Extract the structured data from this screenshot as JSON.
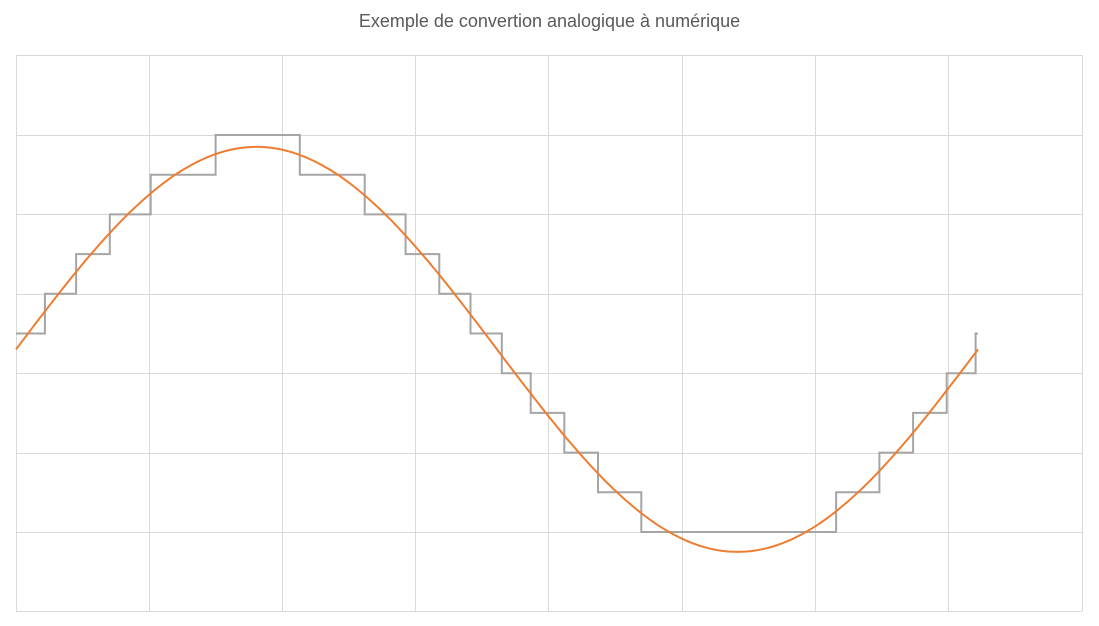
{
  "chart_data": {
    "type": "line",
    "title": "Exemple de convertion analogique à numérique",
    "xlabel": "",
    "ylabel": "",
    "grid": true,
    "tick_labels_visible": false,
    "xlim": [
      0,
      8
    ],
    "ylim": [
      -1.4,
      1.4
    ],
    "series": [
      {
        "style": "smooth",
        "color": "#ED7D31",
        "function": "sin",
        "x": [
          0,
          0.5,
          1.0,
          1.5,
          2.0,
          2.5,
          3.0,
          3.5,
          4.0,
          4.5,
          5.0,
          5.5,
          6.0,
          6.5,
          7.0,
          7.5,
          8.0
        ],
        "values": [
          0.0,
          0.38,
          0.71,
          0.92,
          1.0,
          0.92,
          0.71,
          0.38,
          0.0,
          -0.38,
          -0.71,
          -0.92,
          -1.0,
          -0.92,
          -0.71,
          -0.38,
          0.0
        ]
      },
      {
        "style": "step",
        "color": "#A5A5A5",
        "quantization_levels": [
          -1.0,
          -0.8,
          -0.6,
          -0.4,
          -0.2,
          0.0,
          0.2,
          0.4,
          0.6,
          0.8,
          1.0
        ]
      }
    ]
  }
}
